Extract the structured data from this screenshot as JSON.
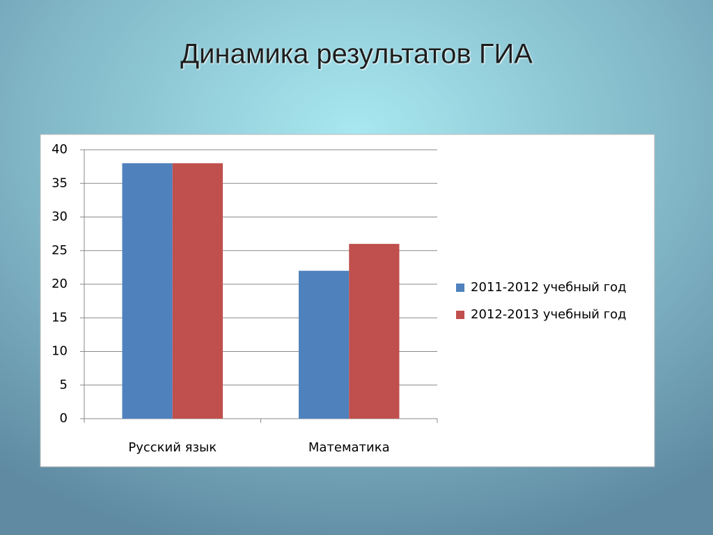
{
  "chart_data": {
    "type": "bar",
    "title": "Динамика результатов ГИА",
    "categories": [
      "Русский язык",
      "Математика"
    ],
    "series": [
      {
        "name": "2011-2012 учебный год",
        "color": "#4f81bd",
        "values": [
          38,
          22
        ]
      },
      {
        "name": "2012-2013 учебный год",
        "color": "#c0504d",
        "values": [
          38,
          26
        ]
      }
    ],
    "ylim": [
      0,
      40
    ],
    "yticks": [
      0,
      5,
      10,
      15,
      20,
      25,
      30,
      35,
      40
    ],
    "grid": true,
    "legend": "right"
  }
}
